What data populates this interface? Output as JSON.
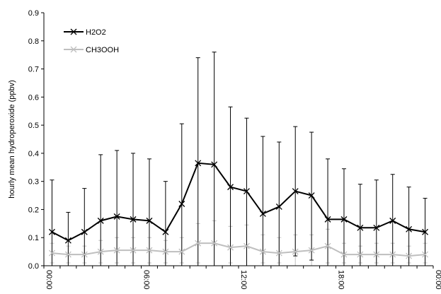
{
  "chart_data": {
    "type": "line",
    "title": "",
    "xlabel": "",
    "ylabel": "hourly mean hydroperoxide (ppbv)",
    "ylim": [
      0,
      0.9
    ],
    "yticks": [
      "0.0",
      "0.1",
      "0.2",
      "0.3",
      "0.4",
      "0.5",
      "0.6",
      "0.7",
      "0.8",
      "0.9"
    ],
    "xlim": [
      0,
      24
    ],
    "xticks": [
      {
        "x": 0,
        "label": "00:00"
      },
      {
        "x": 6,
        "label": "06:00"
      },
      {
        "x": 12,
        "label": "12:00"
      },
      {
        "x": 18,
        "label": "18:00"
      },
      {
        "x": 24,
        "label": "00:00"
      }
    ],
    "grid": false,
    "legend_position": "top-left",
    "x": [
      0.5,
      1.5,
      2.5,
      3.5,
      4.5,
      5.5,
      6.5,
      7.5,
      8.5,
      9.5,
      10.5,
      11.5,
      12.5,
      13.5,
      14.5,
      15.5,
      16.5,
      17.5,
      18.5,
      19.5,
      20.5,
      21.5,
      22.5,
      23.5
    ],
    "series": [
      {
        "name": "H2O2",
        "color": "#000000",
        "marker": "x",
        "values": [
          0.12,
          0.09,
          0.12,
          0.16,
          0.175,
          0.165,
          0.16,
          0.12,
          0.22,
          0.365,
          0.36,
          0.28,
          0.265,
          0.185,
          0.21,
          0.265,
          0.25,
          0.165,
          0.165,
          0.135,
          0.135,
          0.16,
          0.13,
          0.12
        ],
        "error_high": [
          0.305,
          0.19,
          0.275,
          0.395,
          0.41,
          0.4,
          0.38,
          0.3,
          0.505,
          0.74,
          0.76,
          0.565,
          0.525,
          0.46,
          0.44,
          0.495,
          0.475,
          0.38,
          0.345,
          0.29,
          0.305,
          0.325,
          0.28,
          0.24
        ],
        "error_low": [
          0.0,
          0.0,
          0.0,
          0.0,
          0.0,
          0.0,
          0.0,
          0.0,
          0.0,
          0.0,
          0.0,
          0.0,
          0.0,
          0.0,
          0.0,
          0.035,
          0.02,
          0.0,
          0.0,
          0.0,
          0.0,
          0.0,
          0.0,
          0.0
        ]
      },
      {
        "name": "CH3OOH",
        "color": "#bfbfbf",
        "marker": "x",
        "values": [
          0.045,
          0.04,
          0.04,
          0.05,
          0.055,
          0.055,
          0.055,
          0.05,
          0.05,
          0.08,
          0.08,
          0.065,
          0.07,
          0.05,
          0.045,
          0.05,
          0.055,
          0.07,
          0.04,
          0.04,
          0.04,
          0.04,
          0.035,
          0.04
        ],
        "error_high": [
          0.08,
          0.07,
          0.07,
          0.09,
          0.1,
          0.1,
          0.1,
          0.09,
          0.1,
          0.15,
          0.16,
          0.14,
          0.145,
          0.11,
          0.1,
          0.11,
          0.11,
          0.13,
          0.08,
          0.07,
          0.08,
          0.08,
          0.07,
          0.08
        ],
        "error_low": [
          0.01,
          0.01,
          0.01,
          0.01,
          0.01,
          0.01,
          0.01,
          0.01,
          0.01,
          0.01,
          0.0,
          0.01,
          0.0,
          0.01,
          0.01,
          0.0,
          0.0,
          0.01,
          0.01,
          0.01,
          0.01,
          0.01,
          0.01,
          0.01
        ]
      }
    ]
  }
}
